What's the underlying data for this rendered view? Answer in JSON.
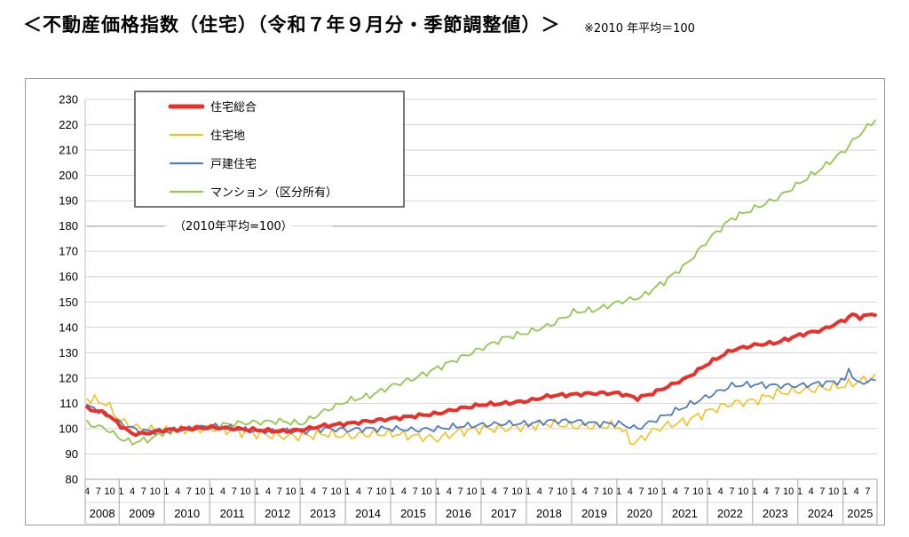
{
  "header": {
    "title": "＜不動産価格指数（住宅）（令和７年９月分・季節調整値）＞",
    "note": "※2010 年平均＝100"
  },
  "chart_data": {
    "type": "line",
    "annotation": "（2010年平均=100）",
    "ylim": [
      80,
      230
    ],
    "yticks": [
      80,
      90,
      100,
      110,
      120,
      130,
      140,
      150,
      160,
      170,
      180,
      190,
      200,
      210,
      220,
      230
    ],
    "grid": true,
    "legend_position": "top-left",
    "start": "2008-04",
    "end": "2025-09",
    "years": [
      "2008",
      "2009",
      "2010",
      "2011",
      "2012",
      "2013",
      "2014",
      "2015",
      "2016",
      "2017",
      "2018",
      "2019",
      "2020",
      "2021",
      "2022",
      "2023",
      "2024",
      "2025"
    ],
    "month_tick_labels": [
      "4",
      "7",
      "10",
      "1"
    ],
    "series": [
      {
        "name": "住宅総合",
        "color": "#e8312a",
        "width": 4,
        "knots": [
          [
            "2008-04",
            108
          ],
          [
            "2008-09",
            106
          ],
          [
            "2009-01",
            101
          ],
          [
            "2009-04",
            98
          ],
          [
            "2009-07",
            98
          ],
          [
            "2010-01",
            99.5
          ],
          [
            "2010-07",
            100
          ],
          [
            "2011-01",
            100.5
          ],
          [
            "2011-07",
            100
          ],
          [
            "2012-01",
            99.5
          ],
          [
            "2012-07",
            99
          ],
          [
            "2013-01",
            99.5
          ],
          [
            "2013-06",
            101
          ],
          [
            "2014-01",
            102
          ],
          [
            "2014-07",
            103
          ],
          [
            "2015-01",
            104
          ],
          [
            "2015-07",
            105
          ],
          [
            "2016-01",
            106
          ],
          [
            "2016-07",
            108
          ],
          [
            "2017-01",
            109.5
          ],
          [
            "2017-07",
            110
          ],
          [
            "2018-01",
            111
          ],
          [
            "2018-07",
            113
          ],
          [
            "2019-01",
            113.5
          ],
          [
            "2019-07",
            114
          ],
          [
            "2020-01",
            114
          ],
          [
            "2020-06",
            112
          ],
          [
            "2020-10",
            114
          ],
          [
            "2021-01",
            116
          ],
          [
            "2021-07",
            120
          ],
          [
            "2022-01",
            126
          ],
          [
            "2022-07",
            131
          ],
          [
            "2023-01",
            133
          ],
          [
            "2023-07",
            134
          ],
          [
            "2024-01",
            137
          ],
          [
            "2024-07",
            139
          ],
          [
            "2025-01",
            143
          ],
          [
            "2025-03",
            145
          ],
          [
            "2025-05",
            144
          ],
          [
            "2025-09",
            145.5
          ]
        ]
      },
      {
        "name": "住宅地",
        "color": "#f5c024",
        "width": 1.6,
        "knots": [
          [
            "2008-04",
            112
          ],
          [
            "2008-09",
            110
          ],
          [
            "2009-01",
            103
          ],
          [
            "2009-06",
            100
          ],
          [
            "2010-01",
            99
          ],
          [
            "2010-07",
            100
          ],
          [
            "2011-01",
            100
          ],
          [
            "2011-07",
            99
          ],
          [
            "2012-01",
            98
          ],
          [
            "2012-07",
            97
          ],
          [
            "2013-01",
            97
          ],
          [
            "2013-07",
            98
          ],
          [
            "2014-01",
            97
          ],
          [
            "2014-07",
            98
          ],
          [
            "2015-01",
            98
          ],
          [
            "2015-07",
            97
          ],
          [
            "2016-01",
            96
          ],
          [
            "2016-07",
            99
          ],
          [
            "2017-01",
            100
          ],
          [
            "2017-07",
            100
          ],
          [
            "2018-01",
            101
          ],
          [
            "2018-07",
            102
          ],
          [
            "2019-01",
            101
          ],
          [
            "2019-07",
            101
          ],
          [
            "2020-01",
            101
          ],
          [
            "2020-05",
            94
          ],
          [
            "2020-10",
            99
          ],
          [
            "2021-01",
            101
          ],
          [
            "2021-07",
            103
          ],
          [
            "2022-01",
            107
          ],
          [
            "2022-07",
            110
          ],
          [
            "2023-01",
            111
          ],
          [
            "2023-07",
            114
          ],
          [
            "2024-01",
            115
          ],
          [
            "2024-07",
            116
          ],
          [
            "2025-01",
            117
          ],
          [
            "2025-09",
            120.5
          ]
        ]
      },
      {
        "name": "戸建住宅",
        "color": "#4f7dc0",
        "width": 1.8,
        "knots": [
          [
            "2008-04",
            109
          ],
          [
            "2008-09",
            106
          ],
          [
            "2009-01",
            102
          ],
          [
            "2009-06",
            99
          ],
          [
            "2010-01",
            99
          ],
          [
            "2010-07",
            100
          ],
          [
            "2011-01",
            101
          ],
          [
            "2011-07",
            100
          ],
          [
            "2012-01",
            99
          ],
          [
            "2012-07",
            99
          ],
          [
            "2013-01",
            99
          ],
          [
            "2013-07",
            100
          ],
          [
            "2014-01",
            99.5
          ],
          [
            "2014-07",
            100
          ],
          [
            "2015-01",
            100
          ],
          [
            "2015-07",
            99.5
          ],
          [
            "2016-01",
            100
          ],
          [
            "2016-07",
            101
          ],
          [
            "2017-01",
            101.5
          ],
          [
            "2017-07",
            102
          ],
          [
            "2018-01",
            102
          ],
          [
            "2018-07",
            103
          ],
          [
            "2019-01",
            103
          ],
          [
            "2019-07",
            102
          ],
          [
            "2020-01",
            102
          ],
          [
            "2020-06",
            100
          ],
          [
            "2020-10",
            103
          ],
          [
            "2021-01",
            105
          ],
          [
            "2021-07",
            109
          ],
          [
            "2022-01",
            113
          ],
          [
            "2022-07",
            117
          ],
          [
            "2023-01",
            117.5
          ],
          [
            "2023-07",
            117
          ],
          [
            "2024-01",
            117
          ],
          [
            "2024-07",
            118
          ],
          [
            "2025-01",
            119
          ],
          [
            "2025-02",
            124
          ],
          [
            "2025-04",
            118
          ],
          [
            "2025-09",
            119
          ]
        ]
      },
      {
        "name": "マンション（区分所有）",
        "color": "#92c753",
        "width": 1.8,
        "knots": [
          [
            "2008-04",
            102
          ],
          [
            "2008-09",
            100
          ],
          [
            "2009-01",
            96
          ],
          [
            "2009-04",
            94.5
          ],
          [
            "2009-09",
            96
          ],
          [
            "2010-01",
            99
          ],
          [
            "2010-07",
            100
          ],
          [
            "2011-01",
            101
          ],
          [
            "2011-07",
            102
          ],
          [
            "2012-01",
            102.5
          ],
          [
            "2012-07",
            103
          ],
          [
            "2013-01",
            102
          ],
          [
            "2013-07",
            107
          ],
          [
            "2014-01",
            111
          ],
          [
            "2014-07",
            113
          ],
          [
            "2015-01",
            117
          ],
          [
            "2015-07",
            120
          ],
          [
            "2016-01",
            124
          ],
          [
            "2016-07",
            128
          ],
          [
            "2017-01",
            132
          ],
          [
            "2017-07",
            136
          ],
          [
            "2018-01",
            138
          ],
          [
            "2018-07",
            141
          ],
          [
            "2019-01",
            146
          ],
          [
            "2019-07",
            147
          ],
          [
            "2020-01",
            150
          ],
          [
            "2020-07",
            152
          ],
          [
            "2021-01",
            158
          ],
          [
            "2021-07",
            165
          ],
          [
            "2022-01",
            175
          ],
          [
            "2022-07",
            183
          ],
          [
            "2023-01",
            187
          ],
          [
            "2023-07",
            191
          ],
          [
            "2024-01",
            197
          ],
          [
            "2024-07",
            203
          ],
          [
            "2025-01",
            210
          ],
          [
            "2025-04",
            215
          ],
          [
            "2025-09",
            222
          ]
        ]
      }
    ]
  }
}
